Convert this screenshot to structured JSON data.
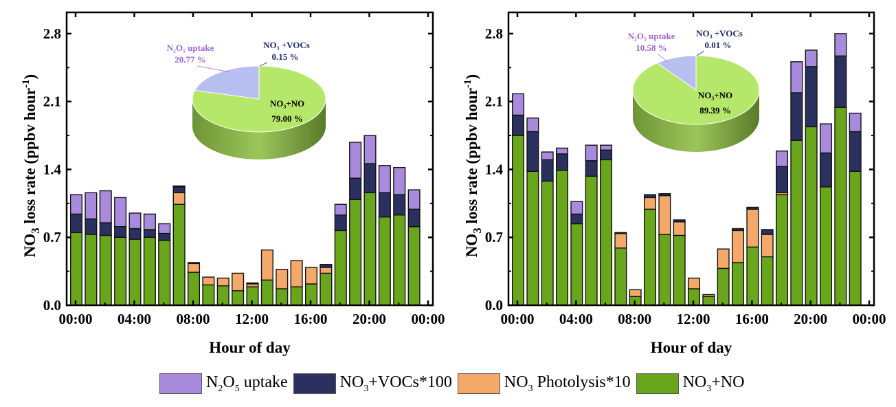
{
  "chart_data": [
    {
      "type": "bar",
      "stacked": true,
      "xlabel": "Hour of day",
      "ylabel": "NO3 loss rate (ppbv hour-1)",
      "ylim": [
        0,
        3.0
      ],
      "yticks": [
        "0.0",
        "0.7",
        "1.4",
        "2.1",
        "2.8"
      ],
      "xticks": [
        "00:00",
        "04:00",
        "08:00",
        "12:00",
        "16:00",
        "20:00",
        "00:00"
      ],
      "categories": [
        0,
        1,
        2,
        3,
        4,
        5,
        6,
        7,
        8,
        9,
        10,
        11,
        12,
        13,
        14,
        15,
        16,
        17,
        18,
        19,
        20,
        21,
        22,
        23
      ],
      "series": [
        {
          "name": "NO3+NO",
          "values": [
            0.75,
            0.73,
            0.72,
            0.7,
            0.68,
            0.7,
            0.67,
            1.04,
            0.34,
            0.21,
            0.2,
            0.15,
            0.19,
            0.26,
            0.17,
            0.19,
            0.22,
            0.33,
            0.77,
            1.09,
            1.16,
            0.91,
            0.93,
            0.81
          ]
        },
        {
          "name": "NO3 Photolysis*10",
          "values": [
            0,
            0,
            0,
            0,
            0,
            0,
            0,
            0.12,
            0.09,
            0.08,
            0.08,
            0.18,
            0.03,
            0.31,
            0.2,
            0.27,
            0.17,
            0.06,
            0,
            0,
            0,
            0,
            0,
            0
          ]
        },
        {
          "name": "NO3+VOCs*100",
          "values": [
            0.19,
            0.16,
            0.13,
            0.11,
            0.11,
            0.08,
            0.07,
            0.06,
            0.01,
            0,
            0,
            0,
            0.01,
            0,
            0,
            0,
            0,
            0.03,
            0.16,
            0.22,
            0.3,
            0.25,
            0.21,
            0.18
          ]
        },
        {
          "name": "N2O5 uptake",
          "values": [
            0.2,
            0.27,
            0.33,
            0.3,
            0.16,
            0.16,
            0.1,
            0.01,
            0,
            0,
            0,
            0,
            0,
            0,
            0,
            0,
            0,
            0,
            0.11,
            0.37,
            0.29,
            0.28,
            0.28,
            0.2
          ]
        }
      ],
      "inset_pie": {
        "slices": [
          {
            "name": "NO3+NO",
            "label": "NO₃+NO",
            "value": 79.0,
            "text": "79.00 %"
          },
          {
            "name": "N2O5 uptake",
            "label": "N₂O₅ uptake",
            "value": 20.77,
            "text": "20.77 %"
          },
          {
            "name": "NO3+VOCs",
            "label": "NO₃ +VOCs",
            "value": 0.15,
            "text": "0.15 %"
          }
        ]
      }
    },
    {
      "type": "bar",
      "stacked": true,
      "xlabel": "Hour of day",
      "ylabel": "NO3 loss rate (ppbv hour-1)",
      "ylim": [
        0,
        3.0
      ],
      "yticks": [
        "0.0",
        "0.7",
        "1.4",
        "2.1",
        "2.8"
      ],
      "xticks": [
        "00:00",
        "04:00",
        "08:00",
        "12:00",
        "16:00",
        "20:00",
        "00:00"
      ],
      "categories": [
        0,
        1,
        2,
        3,
        4,
        5,
        6,
        7,
        8,
        9,
        10,
        11,
        12,
        13,
        14,
        15,
        16,
        17,
        18,
        19,
        20,
        21,
        22,
        23
      ],
      "series": [
        {
          "name": "NO3+NO",
          "values": [
            1.75,
            1.38,
            1.28,
            1.39,
            0.84,
            1.33,
            1.5,
            0.59,
            0.09,
            0.99,
            0.73,
            0.72,
            0.17,
            0.09,
            0.38,
            0.44,
            0.6,
            0.5,
            1.14,
            1.7,
            1.84,
            1.22,
            2.04,
            1.38
          ]
        },
        {
          "name": "NO3 Photolysis*10",
          "values": [
            0,
            0,
            0,
            0,
            0,
            0,
            0,
            0.15,
            0.07,
            0.12,
            0.4,
            0.14,
            0.11,
            0.02,
            0.2,
            0.33,
            0.39,
            0.23,
            0.02,
            0,
            0,
            0,
            0,
            0
          ]
        },
        {
          "name": "NO3+VOCs*100",
          "values": [
            0.21,
            0.41,
            0.22,
            0.17,
            0.1,
            0.16,
            0.1,
            0.01,
            0,
            0.03,
            0.02,
            0.02,
            0,
            0,
            0,
            0.02,
            0.02,
            0.05,
            0.27,
            0.49,
            0.62,
            0.35,
            0.53,
            0.41
          ]
        },
        {
          "name": "N2O5 uptake",
          "values": [
            0.22,
            0.14,
            0.08,
            0.06,
            0.13,
            0.16,
            0.05,
            0,
            0,
            0,
            0,
            0,
            0,
            0,
            0,
            0,
            0,
            0,
            0.16,
            0.32,
            0.17,
            0.3,
            0.23,
            0.19
          ]
        }
      ],
      "inset_pie": {
        "slices": [
          {
            "name": "NO3+NO",
            "label": "NO₃+NO",
            "value": 89.39,
            "text": "89.39 %"
          },
          {
            "name": "N2O5 uptake",
            "label": "N₂O₅ uptake",
            "value": 10.58,
            "text": "10.58 %"
          },
          {
            "name": "NO3+VOCs",
            "label": "NO₃ +VOCs",
            "value": 0.01,
            "text": "0.01 %"
          }
        ]
      }
    }
  ],
  "legend": [
    {
      "name": "N2O5 uptake",
      "pre": "N",
      "sub1": "2",
      "mid": "O",
      "sub2": "5",
      "post": " uptake",
      "color": "#a98bdd"
    },
    {
      "name": "NO3+VOCs*100",
      "pre": "NO",
      "sub1": "3",
      "mid": "+VOCs*100",
      "sub2": "",
      "post": "",
      "color": "#2b315e"
    },
    {
      "name": "NO3 Photolysis*10",
      "pre": "NO",
      "sub1": "3",
      "mid": " Photolysis*10",
      "sub2": "",
      "post": "",
      "color": "#f4a96a"
    },
    {
      "name": "NO3+NO",
      "pre": "NO",
      "sub1": "3",
      "mid": "+NO",
      "sub2": "",
      "post": "",
      "color": "#6aa61b"
    }
  ],
  "colors": {
    "NO3+NO": "#6aa61b",
    "NO3 Photolysis*10": "#f4a96a",
    "NO3+VOCs*100": "#2b315e",
    "N2O5 uptake": "#a98bdd",
    "pie_green": "#b5e86a",
    "pie_green_side": "#7fa744",
    "pie_blue": "#b7bff0",
    "pie_label_purple": "#a066d6",
    "pie_label_navy": "#1f2a6e"
  }
}
